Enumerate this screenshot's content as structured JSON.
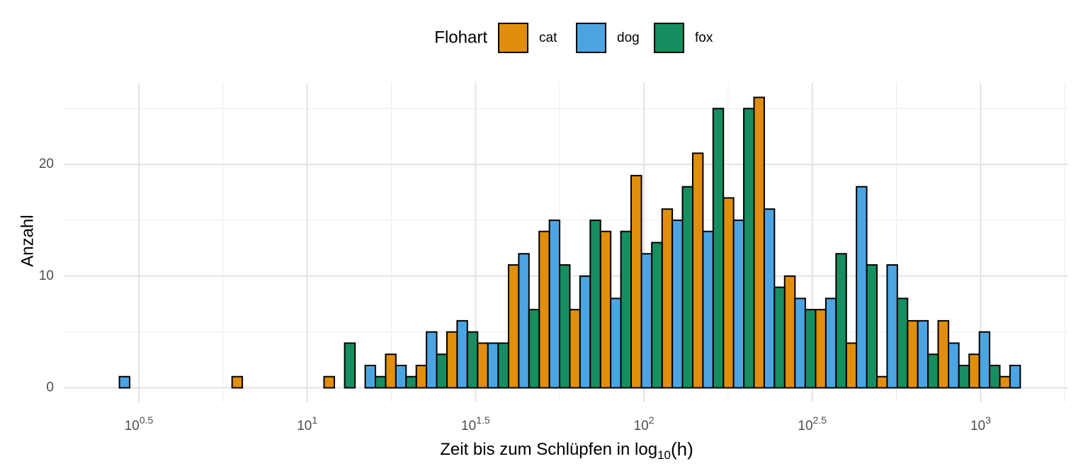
{
  "chart_data": {
    "type": "histogram",
    "xlabel": [
      "Zeit bis zum Schlüpfen in log",
      "10",
      "(h)"
    ],
    "ylabel": "Anzahl",
    "legend_title": "Flohart",
    "legend_position": "top",
    "bins": [
      0.412,
      0.503,
      0.594,
      0.686,
      0.777,
      0.868,
      0.959,
      1.05,
      1.142,
      1.233,
      1.324,
      1.415,
      1.506,
      1.598,
      1.689,
      1.78,
      1.871,
      1.962,
      2.054,
      2.145,
      2.236,
      2.327,
      2.418,
      2.51,
      2.601,
      2.692,
      2.783,
      2.874,
      2.966,
      3.057,
      3.148
    ],
    "series": [
      {
        "name": "cat",
        "color": "#e08e0b",
        "values": [
          0,
          0,
          0,
          0,
          1,
          0,
          0,
          1,
          0,
          3,
          2,
          5,
          4,
          11,
          14,
          7,
          14,
          19,
          16,
          21,
          17,
          26,
          10,
          7,
          4,
          1,
          6,
          6,
          3,
          1
        ]
      },
      {
        "name": "dog",
        "color": "#4ca5e3",
        "values": [
          1,
          0,
          0,
          0,
          0,
          0,
          0,
          0,
          2,
          2,
          5,
          6,
          4,
          12,
          15,
          10,
          8,
          12,
          15,
          14,
          15,
          16,
          8,
          8,
          18,
          11,
          6,
          4,
          5,
          2
        ]
      },
      {
        "name": "fox",
        "color": "#178e5f",
        "values": [
          0,
          0,
          0,
          0,
          0,
          0,
          0,
          4,
          1,
          1,
          3,
          5,
          4,
          7,
          11,
          15,
          14,
          13,
          18,
          25,
          25,
          9,
          7,
          12,
          11,
          8,
          3,
          2,
          2,
          0
        ]
      }
    ],
    "xlim": [
      0.277,
      3.26
    ],
    "xticks": [
      {
        "value": 0.5,
        "label": [
          "10",
          "0.5"
        ]
      },
      {
        "value": 1,
        "label": [
          "10",
          "1"
        ]
      },
      {
        "value": 1.5,
        "label": [
          "10",
          "1.5"
        ]
      },
      {
        "value": 2,
        "label": [
          "10",
          "2"
        ]
      },
      {
        "value": 2.5,
        "label": [
          "10",
          "2.5"
        ]
      },
      {
        "value": 3,
        "label": [
          "10",
          "3"
        ]
      }
    ],
    "xminorticks": [
      0.75,
      1.25,
      1.75,
      2.25,
      2.75,
      3.25
    ],
    "ylim": [
      -1.3,
      27.3
    ],
    "yticks": [
      0,
      10,
      20
    ],
    "yminorticks": [
      5,
      15,
      25
    ],
    "grid": true
  }
}
